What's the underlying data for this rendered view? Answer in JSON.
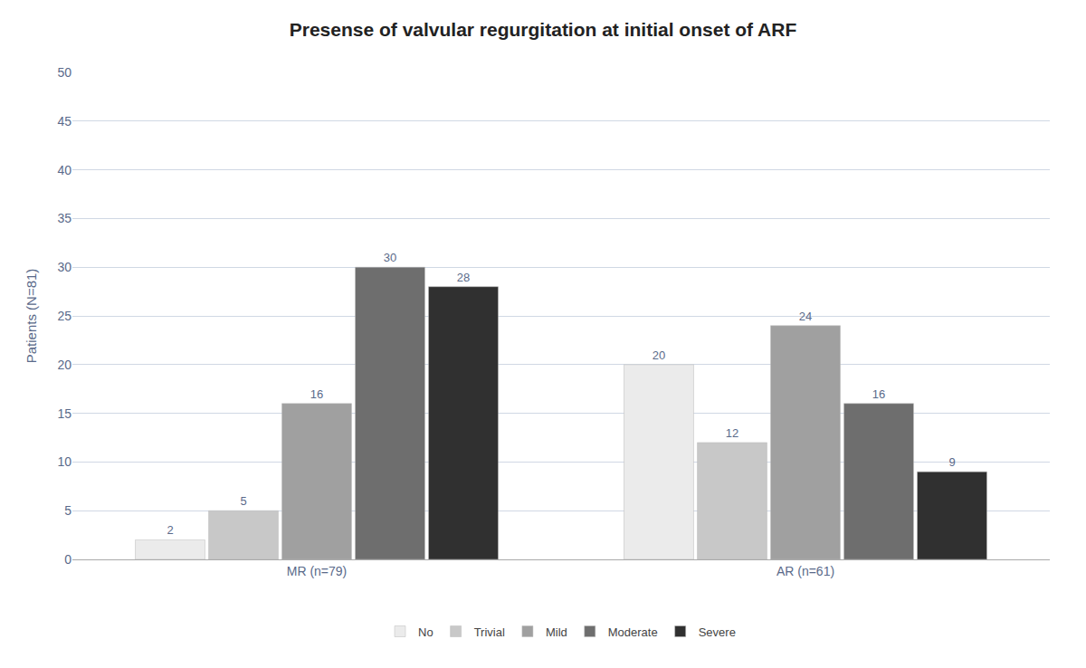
{
  "chart_data": {
    "type": "bar",
    "title": "Presense of valvular regurgitation at initial onset of ARF",
    "ylabel": "Patients (N=81)",
    "categories": [
      "MR (n=79)",
      "AR (n=61)"
    ],
    "series": [
      {
        "name": "No",
        "color": "#ebebeb",
        "values": [
          2,
          20
        ]
      },
      {
        "name": "Trivial",
        "color": "#c8c8c8",
        "values": [
          5,
          12
        ]
      },
      {
        "name": "Mild",
        "color": "#a0a0a0",
        "values": [
          16,
          24
        ]
      },
      {
        "name": "Moderate",
        "color": "#6e6e6e",
        "values": [
          30,
          16
        ]
      },
      {
        "name": "Severe",
        "color": "#303030",
        "values": [
          28,
          9
        ]
      }
    ],
    "ylim": [
      0,
      50
    ],
    "yticks": [
      0,
      5,
      10,
      15,
      20,
      25,
      30,
      35,
      40,
      45,
      50
    ],
    "grid": true,
    "legend": "bottom",
    "data_labels": true
  }
}
